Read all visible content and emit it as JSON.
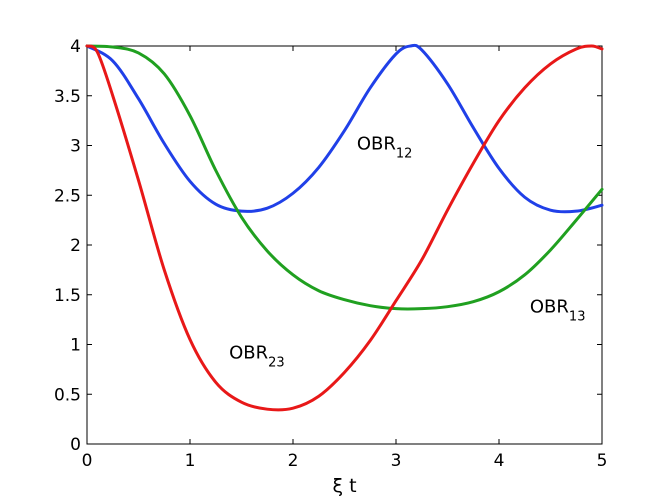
{
  "chart_data": {
    "type": "line",
    "xlabel": "ξ t",
    "ylabel": "",
    "xlim": [
      0,
      5
    ],
    "ylim": [
      0,
      4
    ],
    "x_ticks": [
      0,
      1,
      2,
      3,
      4,
      5
    ],
    "x_tick_labels": [
      "0",
      "1",
      "2",
      "3",
      "4",
      "5"
    ],
    "y_ticks": [
      0,
      0.5,
      1,
      1.5,
      2,
      2.5,
      3,
      3.5,
      4
    ],
    "y_tick_labels": [
      "0",
      "0.5",
      "1",
      "1.5",
      "2",
      "2.5",
      "3",
      "3.5",
      "4"
    ],
    "grid": false,
    "legend": "none",
    "series": [
      {
        "id": "obr12",
        "label_main": "OBR",
        "label_sub": "12",
        "color": "#2040e8",
        "x": [
          0,
          0.25,
          0.5,
          0.75,
          1.0,
          1.25,
          1.5,
          1.75,
          2.0,
          2.25,
          2.5,
          2.75,
          3.0,
          3.14,
          3.25,
          3.5,
          3.75,
          4.0,
          4.25,
          4.5,
          4.75,
          5.0
        ],
        "y": [
          4.0,
          3.85,
          3.47,
          3.02,
          2.64,
          2.41,
          2.34,
          2.37,
          2.52,
          2.78,
          3.15,
          3.58,
          3.92,
          4.0,
          3.96,
          3.62,
          3.18,
          2.77,
          2.48,
          2.35,
          2.34,
          2.4
        ]
      },
      {
        "id": "obr13",
        "label_main": "OBR",
        "label_sub": "13",
        "color": "#20a020",
        "x": [
          0,
          0.25,
          0.5,
          0.75,
          1.0,
          1.25,
          1.5,
          1.75,
          2.0,
          2.25,
          2.5,
          2.75,
          3.0,
          3.25,
          3.5,
          3.75,
          4.0,
          4.25,
          4.5,
          4.75,
          5.0
        ],
        "y": [
          4.0,
          3.99,
          3.93,
          3.72,
          3.3,
          2.75,
          2.28,
          1.94,
          1.7,
          1.54,
          1.45,
          1.39,
          1.36,
          1.36,
          1.38,
          1.43,
          1.53,
          1.7,
          1.95,
          2.25,
          2.56
        ]
      },
      {
        "id": "obr23",
        "label_main": "OBR",
        "label_sub": "23",
        "color": "#e81818",
        "x": [
          0,
          0.1,
          0.25,
          0.5,
          0.75,
          1.0,
          1.25,
          1.5,
          1.75,
          2.0,
          2.25,
          2.5,
          2.75,
          3.0,
          3.25,
          3.5,
          3.75,
          4.0,
          4.25,
          4.5,
          4.75,
          4.9,
          5.0
        ],
        "y": [
          4.0,
          3.94,
          3.5,
          2.65,
          1.75,
          1.05,
          0.62,
          0.42,
          0.35,
          0.36,
          0.48,
          0.72,
          1.04,
          1.44,
          1.85,
          2.35,
          2.82,
          3.25,
          3.58,
          3.82,
          3.97,
          4.0,
          3.97
        ]
      }
    ],
    "annotations": [
      {
        "target": "obr12",
        "main": "OBR",
        "sub": "12",
        "x": 2.62,
        "y": 2.96
      },
      {
        "target": "obr13",
        "main": "OBR",
        "sub": "13",
        "x": 4.3,
        "y": 1.32
      },
      {
        "target": "obr23",
        "main": "OBR",
        "sub": "23",
        "x": 1.38,
        "y": 0.86
      }
    ]
  }
}
